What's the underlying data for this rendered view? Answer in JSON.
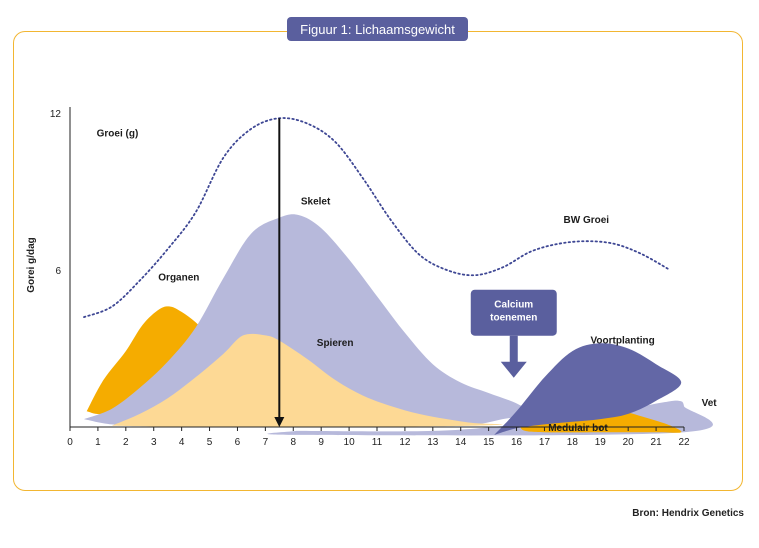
{
  "title": "Figuur 1: Lichaamsgewicht",
  "source": "Bron: Hendrix Genetics",
  "chart_data": {
    "type": "area",
    "ylabel": "Gorei g/dag",
    "xlim": [
      0,
      22
    ],
    "ylim": [
      0,
      12
    ],
    "x_ticks": [
      "0",
      "1",
      "2",
      "3",
      "4",
      "5",
      "6",
      "7",
      "8",
      "9",
      "10",
      "11",
      "12",
      "13",
      "14",
      "15",
      "16",
      "17",
      "18",
      "19",
      "20",
      "21",
      "22"
    ],
    "y_ticks": [
      "6",
      "12"
    ],
    "colors": {
      "organen": "#f5ac00",
      "skelet": "#b7b9db",
      "spieren": "#fdd995",
      "voortplanting": "#6367a6",
      "medulair": "#f5ac00",
      "vet": "#b7b9db",
      "calcium_box": "#5a5f9e",
      "bw_line": "#3e4794",
      "frame": "#f2b632"
    },
    "series": [
      {
        "name": "BW Groei",
        "style": "dotted-line",
        "points": [
          [
            0.5,
            4.2
          ],
          [
            1.5,
            4.6
          ],
          [
            2.5,
            5.6
          ],
          [
            3.5,
            6.8
          ],
          [
            4.5,
            8.2
          ],
          [
            5.5,
            10.3
          ],
          [
            6.5,
            11.4
          ],
          [
            7.5,
            11.8
          ],
          [
            8.5,
            11.6
          ],
          [
            9.5,
            10.9
          ],
          [
            10.5,
            9.5
          ],
          [
            11.5,
            7.9
          ],
          [
            12.5,
            6.6
          ],
          [
            13.5,
            6.0
          ],
          [
            14.5,
            5.8
          ],
          [
            15.5,
            6.1
          ],
          [
            16.5,
            6.7
          ],
          [
            17.5,
            7.0
          ],
          [
            18.5,
            7.1
          ],
          [
            19.5,
            7.0
          ],
          [
            20.5,
            6.6
          ],
          [
            21.5,
            6.0
          ]
        ]
      },
      {
        "name": "Organen",
        "style": "area",
        "points": [
          [
            0.6,
            0.6
          ],
          [
            1.2,
            1.8
          ],
          [
            2.0,
            2.9
          ],
          [
            2.6,
            3.9
          ],
          [
            3.2,
            4.5
          ],
          [
            3.6,
            4.6
          ],
          [
            4.0,
            4.4
          ],
          [
            4.5,
            4.0
          ],
          [
            5.0,
            3.4
          ],
          [
            4.6,
            2.7
          ],
          [
            3.8,
            1.8
          ],
          [
            2.5,
            0.9
          ],
          [
            1.2,
            0.5
          ],
          [
            0.6,
            0.6
          ]
        ]
      },
      {
        "name": "Skelet",
        "style": "area",
        "points": [
          [
            0.5,
            0.3
          ],
          [
            1.5,
            0.7
          ],
          [
            2.5,
            1.5
          ],
          [
            3.5,
            2.5
          ],
          [
            4.5,
            3.8
          ],
          [
            5.5,
            5.7
          ],
          [
            6.5,
            7.4
          ],
          [
            7.5,
            8.0
          ],
          [
            8.2,
            8.1
          ],
          [
            9,
            7.6
          ],
          [
            10,
            6.4
          ],
          [
            11,
            5.0
          ],
          [
            12,
            3.6
          ],
          [
            13,
            2.4
          ],
          [
            14,
            1.7
          ],
          [
            15,
            1.3
          ],
          [
            16,
            0.9
          ],
          [
            16.5,
            0.5
          ],
          [
            15.5,
            0.3
          ],
          [
            14.5,
            0.1
          ],
          [
            13,
            0.1
          ],
          [
            11,
            0.05
          ],
          [
            9,
            0.05
          ],
          [
            7,
            0.05
          ],
          [
            5,
            0.05
          ],
          [
            3,
            0.05
          ],
          [
            1.5,
            0.1
          ],
          [
            0.5,
            0.3
          ]
        ]
      },
      {
        "name": "Spieren",
        "style": "area",
        "points": [
          [
            1.5,
            0.05
          ],
          [
            2.5,
            0.5
          ],
          [
            3.5,
            1.1
          ],
          [
            4.5,
            1.9
          ],
          [
            5.5,
            2.8
          ],
          [
            6.2,
            3.5
          ],
          [
            7,
            3.5
          ],
          [
            7.5,
            3.3
          ],
          [
            8.5,
            2.6
          ],
          [
            9.5,
            1.8
          ],
          [
            10.5,
            1.2
          ],
          [
            11.5,
            0.8
          ],
          [
            12.5,
            0.5
          ],
          [
            13.5,
            0.3
          ],
          [
            14.5,
            0.15
          ],
          [
            15.5,
            0.1
          ],
          [
            14.5,
            0.05
          ],
          [
            12,
            0.02
          ],
          [
            9,
            0.02
          ],
          [
            6,
            0.02
          ],
          [
            3,
            0.02
          ],
          [
            1.5,
            0.05
          ]
        ]
      },
      {
        "name": "Voortplanting",
        "style": "area",
        "points": [
          [
            15.2,
            -0.3
          ],
          [
            16,
            0.6
          ],
          [
            17,
            1.9
          ],
          [
            18,
            2.9
          ],
          [
            19,
            3.2
          ],
          [
            20,
            3.0
          ],
          [
            21,
            2.4
          ],
          [
            21.9,
            1.7
          ],
          [
            21,
            1.0
          ],
          [
            20,
            0.5
          ],
          [
            19,
            0.3
          ],
          [
            18,
            0.2
          ],
          [
            17,
            0.1
          ],
          [
            16,
            -0.05
          ],
          [
            15.2,
            -0.3
          ]
        ]
      },
      {
        "name": "Medulair bot",
        "style": "area",
        "points": [
          [
            16.2,
            0.3
          ],
          [
            16.8,
            0.7
          ],
          [
            17.5,
            0.85
          ],
          [
            18.5,
            0.85
          ],
          [
            19.5,
            0.7
          ],
          [
            20.5,
            0.4
          ],
          [
            21.4,
            0.1
          ],
          [
            21.9,
            -0.2
          ],
          [
            21,
            -0.2
          ],
          [
            19,
            -0.2
          ],
          [
            17,
            -0.2
          ],
          [
            16.2,
            -0.1
          ],
          [
            16.2,
            0.3
          ]
        ]
      },
      {
        "name": "Vet",
        "style": "area",
        "points": [
          [
            8.1,
            -0.15
          ],
          [
            13,
            -0.15
          ],
          [
            16,
            0.1
          ],
          [
            18,
            0.4
          ],
          [
            20,
            0.7
          ],
          [
            21.3,
            0.95
          ],
          [
            21.8,
            1.0
          ],
          [
            22,
            0.8
          ],
          [
            22,
            -0.2
          ],
          [
            8.1,
            -0.3
          ],
          [
            8.1,
            -0.15
          ]
        ]
      }
    ],
    "labels": [
      {
        "text": "Groei (g)",
        "x": 1.7,
        "y": 11.1
      },
      {
        "text": "Skelet",
        "x": 8.8,
        "y": 8.5
      },
      {
        "text": "BW Groei",
        "x": 18.5,
        "y": 7.8
      },
      {
        "text": "Organen",
        "x": 3.9,
        "y": 5.6
      },
      {
        "text": "Spieren",
        "x": 9.5,
        "y": 3.1
      },
      {
        "text": "Voortplanting",
        "x": 19.8,
        "y": 3.2
      },
      {
        "text": "Vet",
        "x": 22.9,
        "y": 0.8
      },
      {
        "text": "Medulair bot",
        "x": 18.2,
        "y": -0.15
      }
    ],
    "annotation": {
      "text_lines": [
        "Calcium",
        "toenemen"
      ],
      "x": 15.9,
      "y": 4.1
    },
    "marker_arrow": {
      "x": 7.5,
      "from_y": 11.8,
      "to_y": 0
    }
  }
}
